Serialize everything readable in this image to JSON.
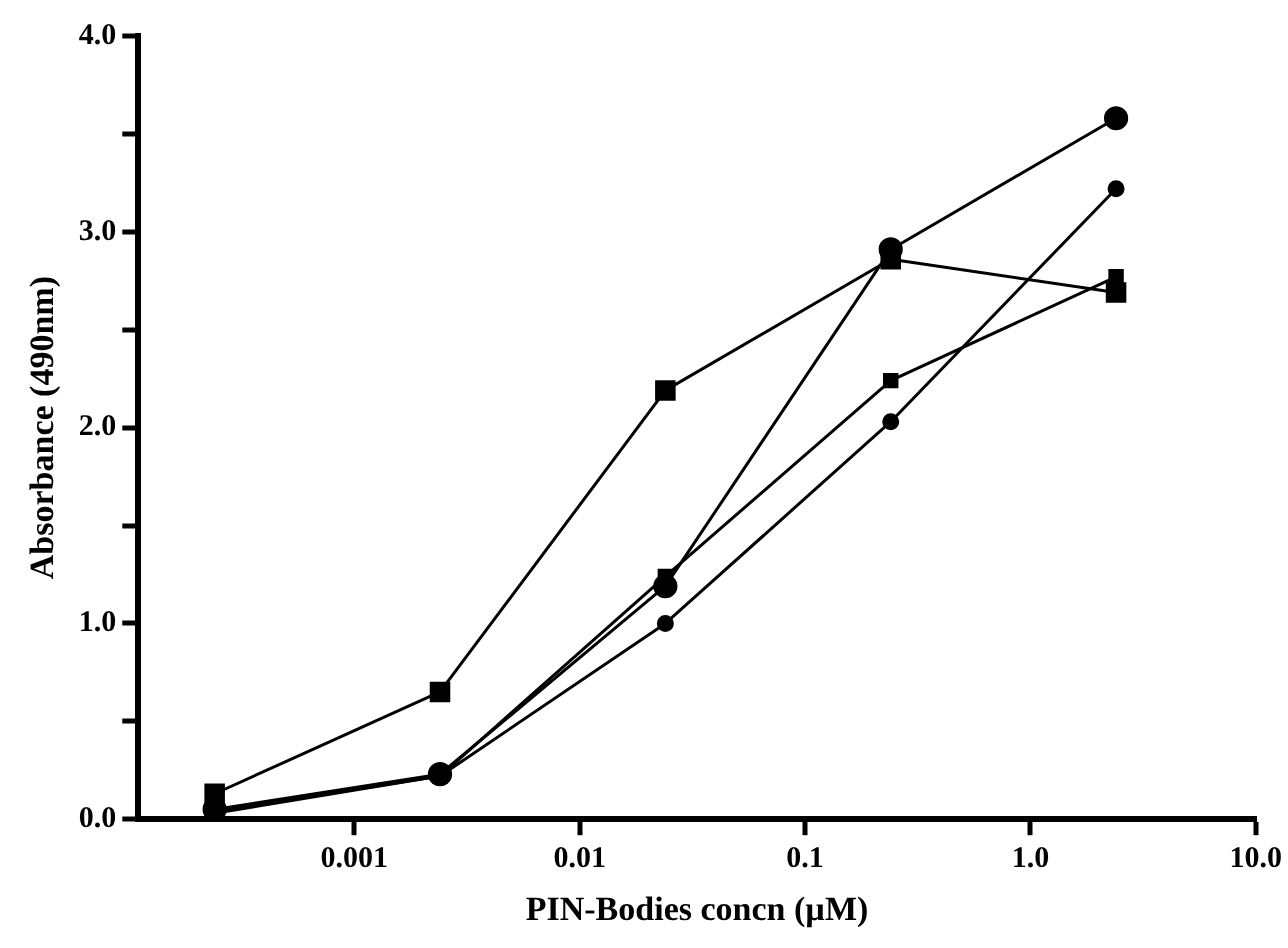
{
  "chart_data": {
    "type": "line",
    "xlabel": "PIN-Bodies concn (µM)",
    "ylabel": "Absorbance (490nm)",
    "x": [
      0.00024,
      0.0024,
      0.024,
      0.24,
      2.4
    ],
    "log": "x",
    "grid": false,
    "legend": false,
    "xlim": [
      0.00011,
      10
    ],
    "xticks": [
      0.001,
      0.01,
      0.1,
      {
        "value": 1,
        "label": "1.0"
      },
      {
        "value": 10,
        "label": "10.0"
      }
    ],
    "ylim": [
      0,
      4
    ],
    "yticks": [
      {
        "value": 0,
        "label": "0.0"
      },
      {
        "value": 0.5,
        "label": null
      },
      {
        "value": 1,
        "label": "1.0"
      },
      {
        "value": 1.5,
        "label": null
      },
      {
        "value": 2,
        "label": "2.0"
      },
      {
        "value": 2.5,
        "label": null
      },
      {
        "value": 3,
        "label": "3.0"
      },
      {
        "value": 3.5,
        "label": null
      },
      {
        "value": 4,
        "label": "4.0"
      }
    ],
    "series": [
      {
        "color": "#000000",
        "marker": "square",
        "values": [
          0.13,
          0.65,
          2.19,
          2.86,
          2.69
        ]
      },
      {
        "color": "#000000",
        "marker": "circle",
        "values": [
          0.05,
          0.23,
          1.19,
          2.91,
          3.58
        ]
      },
      {
        "color": "#000000",
        "marker": "square",
        "values": [
          0.04,
          0.22,
          1.24,
          2.24,
          2.77
        ]
      },
      {
        "color": "#000000",
        "marker": "circle",
        "values": [
          0.03,
          0.22,
          1.0,
          2.03,
          3.22
        ]
      }
    ]
  }
}
